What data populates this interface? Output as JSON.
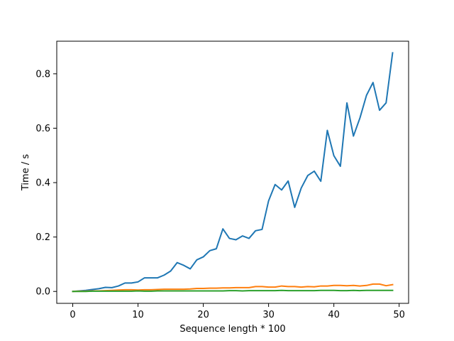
{
  "chart_data": {
    "type": "line",
    "title": "",
    "xlabel": "Sequence length * 100",
    "ylabel": "Time / s",
    "xlim": [
      -2.45,
      51.45
    ],
    "ylim": [
      -0.0438,
      0.9198
    ],
    "xticks": [
      0,
      10,
      20,
      30,
      40,
      50
    ],
    "xtick_labels": [
      "0",
      "10",
      "20",
      "30",
      "40",
      "50"
    ],
    "yticks": [
      0.0,
      0.2,
      0.4,
      0.6,
      0.8
    ],
    "ytick_labels": [
      "0.0",
      "0.2",
      "0.4",
      "0.6",
      "0.8"
    ],
    "grid": false,
    "legend": "none",
    "x": [
      0,
      1,
      2,
      3,
      4,
      5,
      6,
      7,
      8,
      9,
      10,
      11,
      12,
      13,
      14,
      15,
      16,
      17,
      18,
      19,
      20,
      21,
      22,
      23,
      24,
      25,
      26,
      27,
      28,
      29,
      30,
      31,
      32,
      33,
      34,
      35,
      36,
      37,
      38,
      39,
      40,
      41,
      42,
      43,
      44,
      45,
      46,
      47,
      48,
      49
    ],
    "series": [
      {
        "color": "#1f77b4",
        "values": [
          0.0,
          0.002,
          0.004,
          0.007,
          0.01,
          0.015,
          0.014,
          0.02,
          0.031,
          0.031,
          0.035,
          0.05,
          0.05,
          0.05,
          0.06,
          0.075,
          0.106,
          0.096,
          0.083,
          0.116,
          0.127,
          0.15,
          0.157,
          0.23,
          0.195,
          0.19,
          0.204,
          0.195,
          0.223,
          0.228,
          0.333,
          0.393,
          0.373,
          0.406,
          0.309,
          0.38,
          0.426,
          0.442,
          0.405,
          0.592,
          0.499,
          0.46,
          0.693,
          0.571,
          0.638,
          0.721,
          0.768,
          0.666,
          0.693,
          0.877
        ]
      },
      {
        "color": "#ff7f0e",
        "values": [
          0.0,
          0.001,
          0.001,
          0.002,
          0.002,
          0.003,
          0.004,
          0.005,
          0.006,
          0.006,
          0.005,
          0.006,
          0.006,
          0.007,
          0.008,
          0.008,
          0.008,
          0.008,
          0.009,
          0.011,
          0.011,
          0.012,
          0.012,
          0.013,
          0.013,
          0.014,
          0.014,
          0.014,
          0.018,
          0.018,
          0.016,
          0.016,
          0.02,
          0.018,
          0.018,
          0.016,
          0.018,
          0.017,
          0.02,
          0.02,
          0.022,
          0.022,
          0.021,
          0.022,
          0.02,
          0.022,
          0.027,
          0.027,
          0.021,
          0.025
        ]
      },
      {
        "color": "#2ca02c",
        "values": [
          0.0,
          0.0,
          0.0,
          0.001,
          0.001,
          0.001,
          0.001,
          0.001,
          0.001,
          0.001,
          0.002,
          0.001,
          0.001,
          0.002,
          0.002,
          0.002,
          0.002,
          0.002,
          0.002,
          0.002,
          0.002,
          0.002,
          0.002,
          0.002,
          0.003,
          0.003,
          0.002,
          0.003,
          0.003,
          0.003,
          0.003,
          0.003,
          0.004,
          0.003,
          0.003,
          0.003,
          0.003,
          0.003,
          0.004,
          0.004,
          0.004,
          0.003,
          0.003,
          0.004,
          0.003,
          0.004,
          0.004,
          0.004,
          0.004,
          0.004
        ]
      }
    ]
  }
}
